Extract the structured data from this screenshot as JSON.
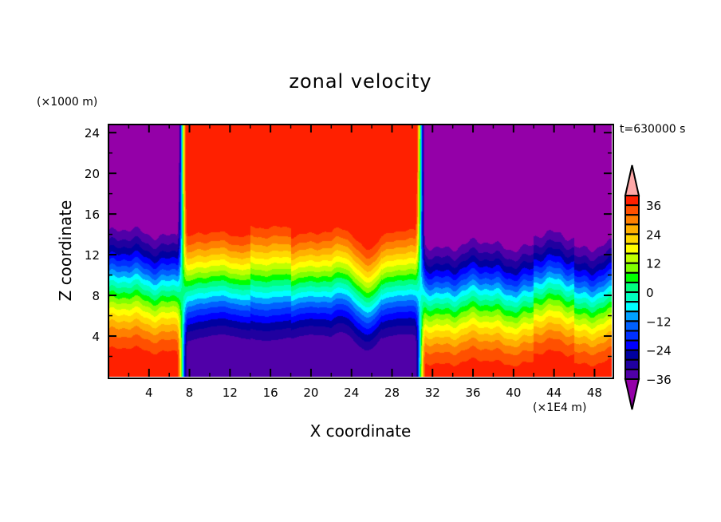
{
  "chart_data": {
    "type": "heatmap",
    "subtype": "filled-contour",
    "title": "zonal velocity",
    "xlabel": "X coordinate",
    "ylabel": "Z coordinate",
    "x_unit_label": "(×1E4 m)",
    "y_unit_label": "(×1000 m)",
    "annotation": "t=630000 s",
    "xlim": [
      0,
      49.7
    ],
    "ylim": [
      0,
      24.8
    ],
    "x_ticks_major": [
      4,
      8,
      12,
      16,
      20,
      24,
      28,
      32,
      36,
      40,
      44,
      48
    ],
    "x_ticks_minor": [
      2,
      6,
      10,
      14,
      18,
      22,
      26,
      30,
      34,
      38,
      42,
      46
    ],
    "y_ticks_major": [
      4,
      8,
      12,
      16,
      20,
      24
    ],
    "y_ticks_minor": [
      2,
      6,
      10,
      14,
      18,
      22
    ],
    "grid": false,
    "colorbar": {
      "position": "right",
      "levels": [
        -36,
        -32,
        -28,
        -24,
        -20,
        -16,
        -12,
        -8,
        -4,
        0,
        4,
        8,
        12,
        16,
        20,
        24,
        28,
        32,
        36
      ],
      "tick_labels": [
        "36",
        "24",
        "12",
        "0",
        "−12",
        "−24",
        "−36"
      ],
      "tick_values": [
        36,
        24,
        12,
        0,
        -12,
        -24,
        -36
      ],
      "extend": "both",
      "colors": [
        "#9400a8",
        "#5000a8",
        "#2000a0",
        "#0000a0",
        "#0000ff",
        "#0030ff",
        "#0060ff",
        "#00a0ff",
        "#00ffff",
        "#00ffc0",
        "#00ff80",
        "#00ff00",
        "#80ff00",
        "#c0ff00",
        "#ffff00",
        "#ffd800",
        "#ffb000",
        "#ff8000",
        "#ff5000",
        "#ff2000",
        "#ffa8a8"
      ],
      "under_color": "#9400a8",
      "over_color": "#ffa8a8"
    },
    "field_description": {
      "westward_jets": [
        {
          "x_range": [
            0,
            7
          ],
          "z_range": [
            6,
            24.8
          ],
          "value_min": -40
        },
        {
          "x_range": [
            31,
            49.7
          ],
          "z_range": [
            4,
            24.8
          ],
          "value_min": -40
        }
      ],
      "eastward_jet": {
        "x_range": [
          7.5,
          30.5
        ],
        "z_range": [
          5,
          24.8
        ],
        "value_max": 40
      },
      "surface_layer": [
        {
          "x_range": [
            0,
            7
          ],
          "z_range": [
            0,
            4
          ],
          "value": 36
        },
        {
          "x_range": [
            7.5,
            30.5
          ],
          "z_range": [
            0,
            3
          ],
          "value": -36
        },
        {
          "x_range": [
            31,
            49.7
          ],
          "z_range": [
            0,
            3
          ],
          "value": 36
        }
      ],
      "transition_zones_x": [
        7.2,
        30.8
      ]
    }
  }
}
